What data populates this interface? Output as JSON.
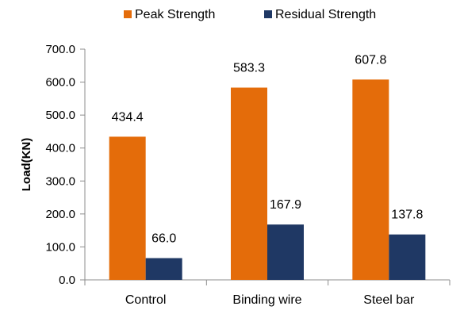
{
  "chart_data": {
    "type": "bar",
    "title": "",
    "xlabel": "",
    "ylabel": "Load(KN)",
    "ylim": [
      0,
      700
    ],
    "yticks": [
      "0.0",
      "100.0",
      "200.0",
      "300.0",
      "400.0",
      "500.0",
      "600.0",
      "700.0"
    ],
    "categories": [
      "Control",
      "Binding wire",
      "Steel bar"
    ],
    "series": [
      {
        "name": "Peak Strength",
        "color": "#E46C0A",
        "values": [
          434.4,
          583.3,
          607.8
        ],
        "labels": [
          "434.4",
          "583.3",
          "607.8"
        ]
      },
      {
        "name": "Residual Strength",
        "color": "#1F3864",
        "values": [
          66.0,
          167.9,
          137.8
        ],
        "labels": [
          "66.0",
          "167.9",
          "137.8"
        ]
      }
    ],
    "grid": false,
    "legend": "top-center"
  }
}
